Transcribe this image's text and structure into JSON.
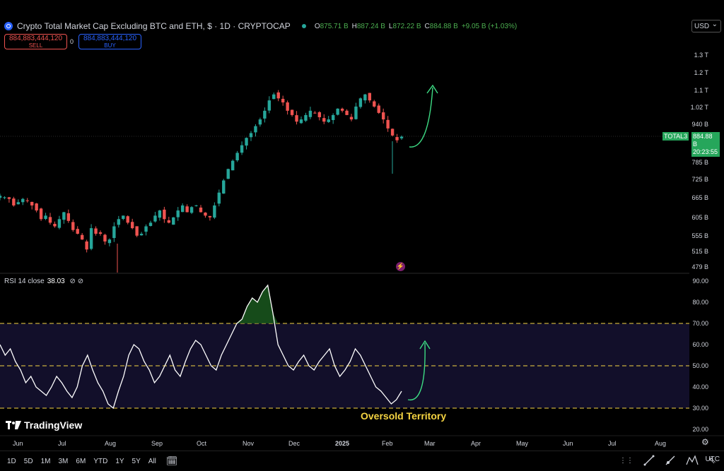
{
  "header": {
    "title": "Crypto Total Market Cap Excluding BTC and ETH, $ · 1D · CRYPTOCAP",
    "ohlc": [
      {
        "k": "O",
        "v": "875.71 B"
      },
      {
        "k": "H",
        "v": "887.24 B"
      },
      {
        "k": "L",
        "v": "872.22 B"
      },
      {
        "k": "C",
        "v": "884.88 B"
      }
    ],
    "change": "+9.05 B (+1.03%)",
    "currency": "USD"
  },
  "trade": {
    "sell_value": "884,883,444,120",
    "sell_label": "SELL",
    "spread": "0",
    "buy_value": "884,883,444,120",
    "buy_label": "BUY"
  },
  "price_axis": {
    "labels": [
      "1.3 T",
      "1.2 T",
      "1.1 T",
      "1.02 T",
      "940 B",
      "785 B",
      "725 B",
      "665 B",
      "605 B",
      "555 B",
      "515 B",
      "479 B"
    ],
    "symbol_tag": "TOTAL3",
    "last_price": "884.88 B",
    "countdown": "20:23:55"
  },
  "rsi": {
    "name": "RSI 14 close",
    "value": "38.03",
    "axis_labels": [
      "90.00",
      "80.00",
      "70.00",
      "60.00",
      "50.00",
      "40.00",
      "30.00",
      "20.00"
    ],
    "annotation": "Oversold Territory"
  },
  "brand": "TradingView",
  "time_axis": [
    "Jun",
    "Jul",
    "Aug",
    "Sep",
    "Oct",
    "Nov",
    "Dec",
    "2025",
    "Feb",
    "Mar",
    "Apr",
    "May",
    "Jun",
    "Jul",
    "Aug"
  ],
  "timeframes": [
    "1D",
    "5D",
    "1M",
    "3M",
    "6M",
    "YTD",
    "1Y",
    "5Y",
    "All"
  ],
  "timezone": "UTC",
  "colors": {
    "up": "#26a69a",
    "down": "#ef5350",
    "accent": "#26a65b",
    "oversold": "#f5d442"
  },
  "chart_data": {
    "type": "candlestick",
    "price_unit": "B USD",
    "price_series_approx": [
      670,
      665,
      660,
      640,
      650,
      660,
      655,
      640,
      625,
      600,
      610,
      590,
      580,
      600,
      620,
      595,
      570,
      560,
      545,
      520,
      575,
      560,
      560,
      540,
      545,
      580,
      600,
      610,
      590,
      575,
      555,
      560,
      580,
      590,
      610,
      625,
      600,
      590,
      605,
      625,
      640,
      620,
      635,
      640,
      620,
      610,
      605,
      640,
      680,
      720,
      760,
      790,
      820,
      850,
      880,
      900,
      930,
      960,
      1000,
      1050,
      1080,
      1060,
      1040,
      1000,
      980,
      950,
      960,
      980,
      1000,
      990,
      970,
      950,
      960,
      980,
      1010,
      1000,
      980,
      960,
      1020,
      1060,
      1080,
      1050,
      1020,
      990,
      960,
      920,
      890,
      870,
      885
    ],
    "rsi_series_approx": [
      60,
      55,
      58,
      52,
      48,
      42,
      45,
      40,
      38,
      36,
      40,
      45,
      42,
      38,
      35,
      40,
      50,
      55,
      48,
      42,
      38,
      32,
      30,
      38,
      45,
      55,
      60,
      58,
      52,
      48,
      42,
      45,
      50,
      55,
      48,
      45,
      52,
      58,
      62,
      60,
      55,
      50,
      48,
      55,
      60,
      65,
      70,
      72,
      78,
      82,
      80,
      85,
      88,
      75,
      60,
      55,
      50,
      48,
      52,
      55,
      50,
      48,
      52,
      55,
      58,
      50,
      45,
      48,
      52,
      58,
      55,
      50,
      45,
      40,
      38,
      35,
      32,
      34,
      38
    ],
    "rsi_levels": [
      70,
      50,
      30
    ]
  }
}
